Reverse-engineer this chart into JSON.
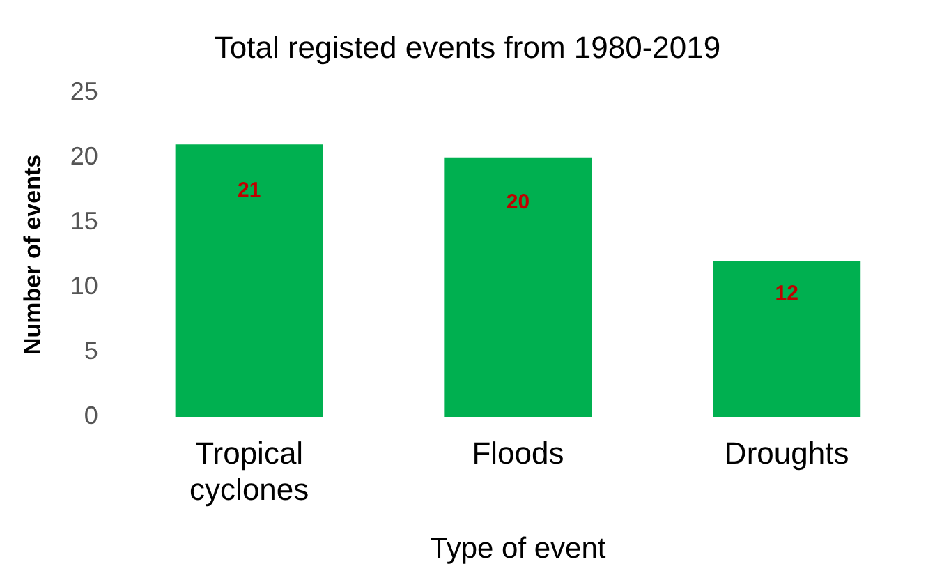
{
  "chart_data": {
    "type": "bar",
    "title": "Total registed events from 1980-2019",
    "xlabel": "Type of event",
    "ylabel": "Number of events",
    "categories": [
      "Tropical cyclones",
      "Floods",
      "Droughts"
    ],
    "values": [
      21,
      20,
      12
    ],
    "color": "#00b050",
    "ylim": [
      0,
      25
    ],
    "yticks": [
      0,
      5,
      10,
      15,
      20,
      25
    ],
    "grid": false,
    "data_labels": true
  }
}
